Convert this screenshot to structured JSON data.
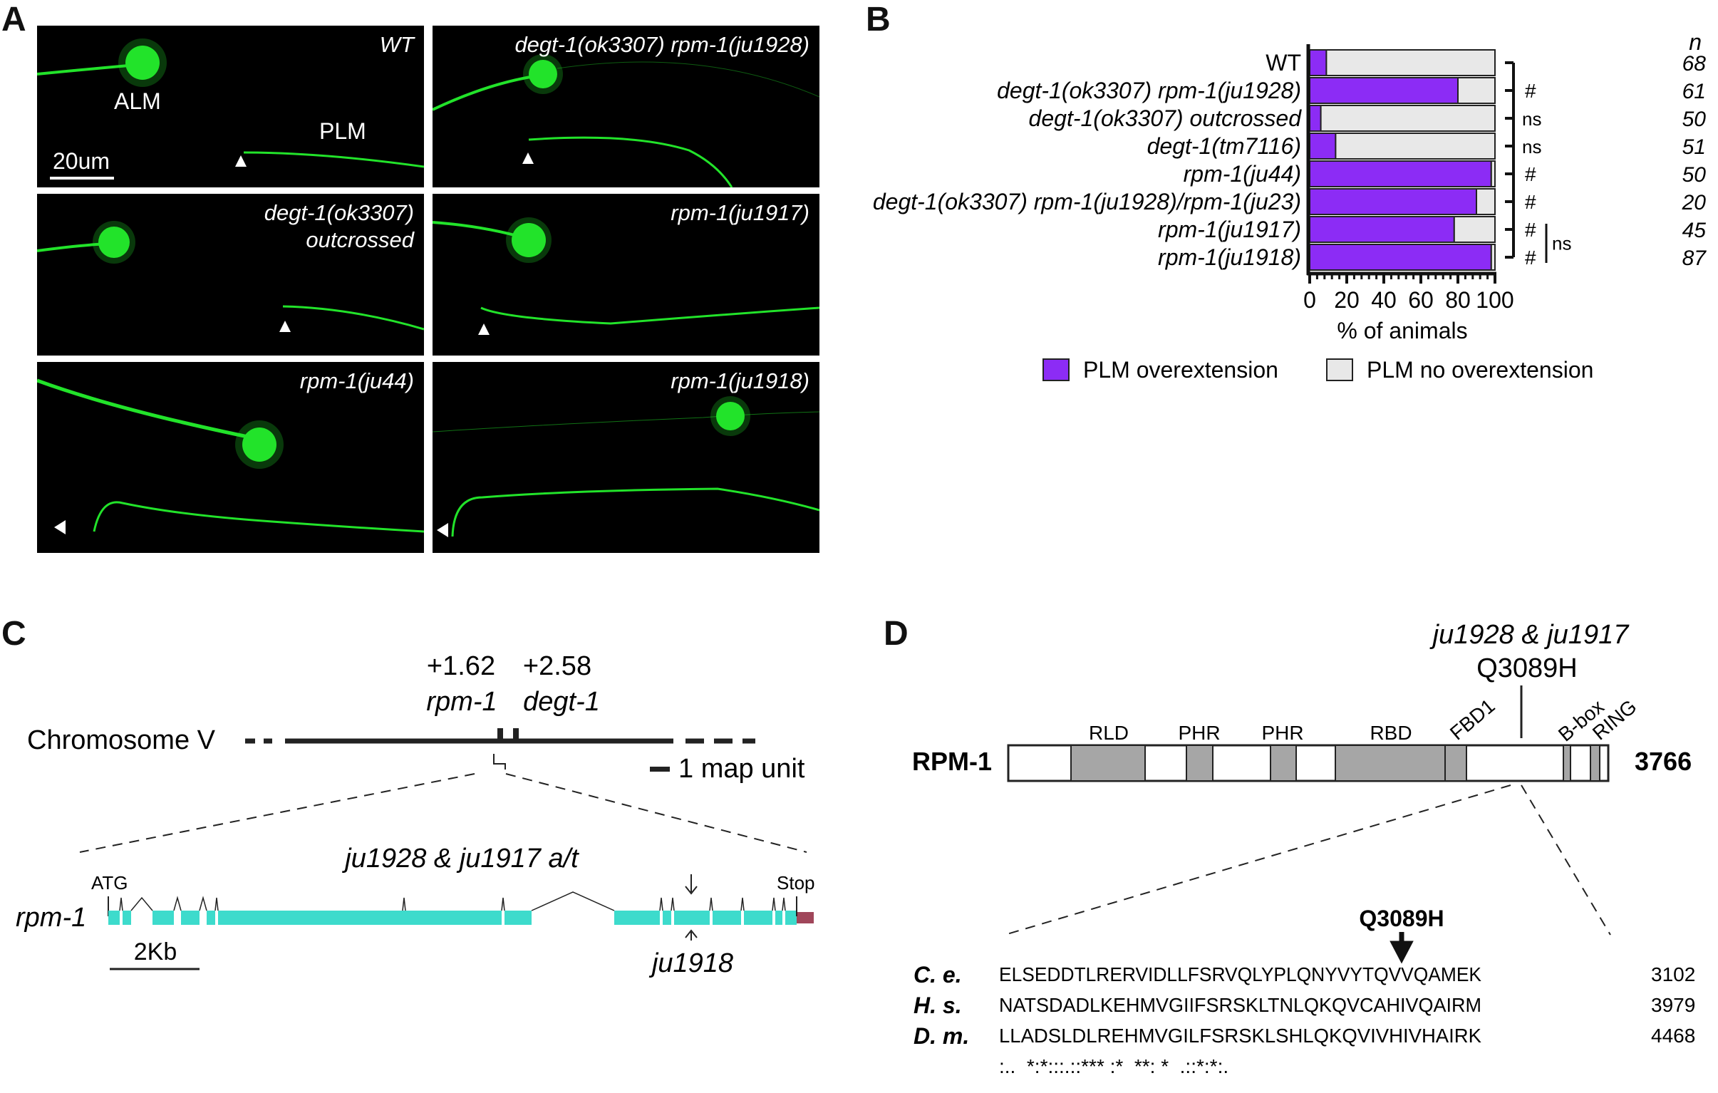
{
  "panels": {
    "A": "A",
    "B": "B",
    "C": "C",
    "D": "D"
  },
  "panelA": {
    "tiles": [
      {
        "label": "WT"
      },
      {
        "label": "degt-1(ok3307) rpm-1(ju1928)"
      },
      {
        "label": "degt-1(ok3307)",
        "label2": "outcrossed"
      },
      {
        "label": "rpm-1(ju1917)"
      },
      {
        "label": "rpm-1(ju44)"
      },
      {
        "label": "rpm-1(ju1918)"
      }
    ],
    "alm_label": "ALM",
    "plm_label": "PLM",
    "scale_label": "20um",
    "colors": {
      "neuron": "#22e32a",
      "background": "#000000"
    }
  },
  "chart_data": {
    "type": "bar",
    "orientation": "horizontal",
    "stacked": true,
    "categories": [
      "WT",
      "degt-1(ok3307) rpm-1(ju1928)",
      "degt-1(ok3307) outcrossed",
      "degt-1(tm7116)",
      "rpm-1(ju44)",
      "degt-1(ok3307) rpm-1(ju1928)/rpm-1(ju23)",
      "rpm-1(ju1917)",
      "rpm-1(ju1918)"
    ],
    "series": [
      {
        "name": "PLM overextension",
        "color": "#8c2cf5",
        "values": [
          9,
          80,
          6,
          14,
          98,
          90,
          78,
          98
        ]
      },
      {
        "name": "PLM no overextension",
        "color": "#e8e8e8",
        "values": [
          91,
          20,
          94,
          86,
          2,
          10,
          22,
          2
        ]
      }
    ],
    "n_header": "n",
    "n_values": [
      "68",
      "61",
      "50",
      "51",
      "50",
      "20",
      "45",
      "87"
    ],
    "significance": [
      "",
      "#",
      "ns",
      "ns",
      "#",
      "#",
      "#",
      "#"
    ],
    "significance_bracket": "ns",
    "xlabel": "% of animals",
    "xlim": [
      0,
      100
    ],
    "xticks": [
      "0",
      "20",
      "40",
      "60",
      "80",
      "100"
    ]
  },
  "panelC": {
    "chrom_label": "Chromosome V",
    "marker1_pos": "+1.62",
    "marker1_gene": "rpm-1",
    "marker2_pos": "+2.58",
    "marker2_gene": "degt-1",
    "map_unit": "1 map unit",
    "gene_label": "rpm-1",
    "atg": "ATG",
    "stop": "Stop",
    "mutation_top": "ju1928 & ju1917 a/t",
    "mutation_bottom": "ju1918",
    "scale": "2Kb",
    "exon_color": "#3ddbcc",
    "utr_color": "#a0465a"
  },
  "panelD": {
    "protein": "RPM-1",
    "length": "3766",
    "mut_label": "ju1928 & ju1917",
    "mut_aa": "Q3089H",
    "domains": [
      "RLD",
      "PHR",
      "PHR",
      "RBD",
      "FBD1",
      "B-box",
      "RING"
    ],
    "arrow_label": "Q3089H",
    "alignment": [
      {
        "species": "C. e.",
        "seq": "ELSEDDTLRERVIDLLFSRVQLYPLQNYVYTQVVQAMEK",
        "end": "3102"
      },
      {
        "species": "H. s.",
        "seq": "NATSDADLKEHMVGIIFSRSKLTNLQKQVCAHIVQAIRM",
        "end": "3979"
      },
      {
        "species": "D. m.",
        "seq": "LLADSLDLREHMVGILFSRSKLSHLQKQVIVHIVHAIRK",
        "end": "4468"
      }
    ],
    "consensus": ":..  *:*:::.::*** :*  **: *  .::*:*:.",
    "domain_color": "#a6a6a6"
  }
}
